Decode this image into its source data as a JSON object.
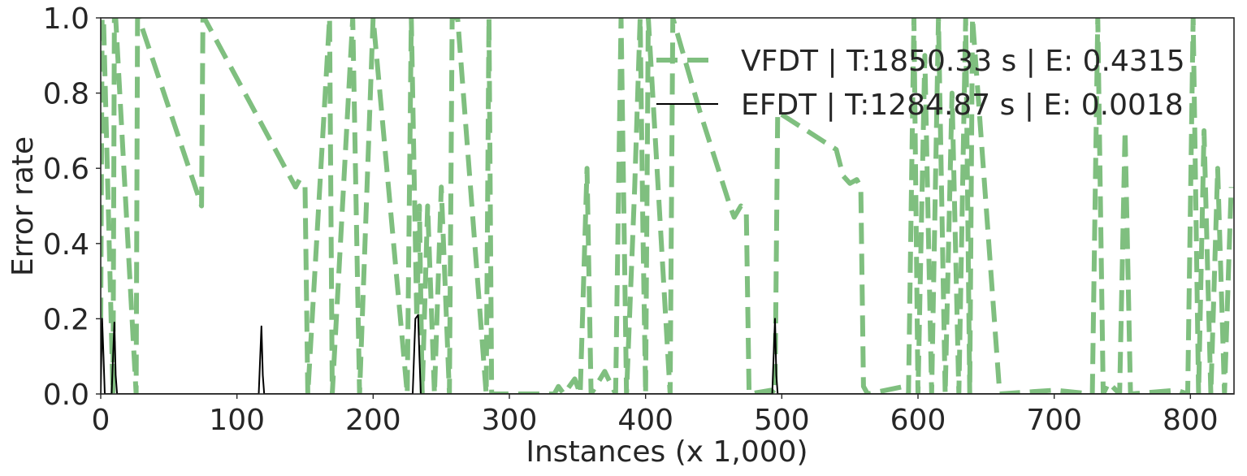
{
  "chart_data": {
    "type": "line",
    "xlabel": "Instances (x 1,000)",
    "ylabel": "Error rate",
    "xlim": [
      0,
      832
    ],
    "ylim": [
      0.0,
      1.0
    ],
    "x_ticks": [
      "0",
      "100",
      "200",
      "300",
      "400",
      "500",
      "600",
      "700",
      "800"
    ],
    "x_tick_values": [
      0,
      100,
      200,
      300,
      400,
      500,
      600,
      700,
      800
    ],
    "y_ticks": [
      "0.0",
      "0.2",
      "0.4",
      "0.6",
      "0.8",
      "1.0"
    ],
    "y_tick_values": [
      0.0,
      0.2,
      0.4,
      0.6,
      0.8,
      1.0
    ],
    "grid": false,
    "legend_position": "top-right",
    "series": [
      {
        "name": "VFDT | T:1850.33 s | E: 0.4315",
        "color": "#7fbf7f",
        "style": "dashed",
        "x": [
          0,
          1,
          2,
          9,
          10,
          11,
          26,
          27,
          28,
          74,
          75,
          76,
          143,
          146,
          150,
          152,
          168,
          170,
          185,
          190,
          200,
          225,
          228,
          232,
          234,
          236,
          240,
          245,
          250,
          256,
          258,
          262,
          283,
          285,
          287,
          333,
          336,
          340,
          348,
          352,
          357,
          360,
          370,
          378,
          382,
          386,
          392,
          396,
          398,
          400,
          402,
          418,
          420,
          440,
          462,
          465,
          470,
          474,
          476,
          492,
          495,
          497,
          540,
          545,
          550,
          555,
          558,
          560,
          563,
          590,
          593,
          597,
          600,
          605,
          610,
          615,
          620,
          625,
          630,
          635,
          638,
          640,
          660,
          700,
          728,
          732,
          736,
          740,
          748,
          752,
          756,
          790,
          798,
          802,
          806,
          810,
          815,
          820,
          825,
          830
        ],
        "y": [
          0.2,
          1.0,
          1.0,
          0.0,
          1.0,
          1.0,
          0.0,
          1.0,
          1.0,
          0.5,
          1.0,
          1.0,
          0.55,
          0.57,
          0.55,
          0.0,
          1.0,
          0.0,
          1.0,
          0.0,
          1.0,
          0.0,
          1.0,
          0.2,
          0.5,
          0.0,
          0.5,
          0.0,
          0.55,
          0.0,
          1.0,
          1.0,
          0.0,
          1.0,
          0.0,
          0.0,
          0.02,
          0.0,
          0.04,
          0.0,
          0.6,
          0.0,
          0.06,
          0.0,
          1.0,
          0.0,
          0.55,
          1.0,
          0.45,
          0.0,
          1.0,
          0.0,
          1.0,
          0.75,
          0.5,
          0.47,
          0.5,
          0.48,
          0.0,
          0.01,
          0.0,
          0.75,
          0.65,
          0.58,
          0.56,
          0.57,
          0.55,
          0.02,
          0.0,
          0.02,
          0.0,
          1.0,
          0.0,
          0.9,
          0.0,
          1.0,
          0.0,
          0.8,
          0.0,
          1.0,
          0.0,
          1.0,
          0.0,
          0.01,
          0.0,
          1.0,
          0.0,
          0.03,
          0.0,
          0.7,
          0.0,
          0.01,
          0.0,
          1.0,
          0.0,
          0.7,
          0.0,
          0.6,
          0.0,
          0.55
        ],
        "opacity": [
          1,
          1,
          1,
          1,
          1,
          1,
          1,
          1,
          1,
          1,
          1,
          1,
          1,
          1,
          1,
          1,
          1,
          1,
          1,
          1,
          1,
          1,
          1,
          1,
          1,
          1,
          1,
          1,
          1,
          1,
          1,
          1,
          1,
          1,
          1,
          1,
          1,
          1,
          1,
          1,
          1,
          1,
          1,
          1,
          1,
          1,
          1,
          1,
          1,
          1,
          1,
          1,
          1,
          1,
          1,
          1,
          1,
          1,
          1,
          1,
          1,
          1,
          1,
          1,
          1,
          1,
          1,
          1,
          1,
          1,
          1,
          1,
          1,
          1,
          1,
          1,
          1,
          1,
          1,
          1,
          1,
          1,
          1,
          1,
          1,
          1,
          1,
          1,
          1,
          1,
          1,
          1,
          1,
          1,
          1,
          1,
          1,
          1,
          1,
          1
        ]
      },
      {
        "name": "EFDT | T:1284.87 s | E: 0.0018",
        "color": "#000000",
        "style": "solid",
        "x": [
          0,
          1,
          2,
          3,
          8,
          10,
          11,
          12,
          116,
          118,
          119,
          120,
          229,
          231,
          233,
          234,
          235,
          493,
          495,
          496,
          497,
          832
        ],
        "y": [
          0.0,
          0.2,
          0.1,
          0.0,
          0.0,
          0.19,
          0.05,
          0.0,
          0.0,
          0.18,
          0.05,
          0.0,
          0.0,
          0.2,
          0.21,
          0.1,
          0.0,
          0.0,
          0.2,
          0.05,
          0.0,
          0.0
        ]
      }
    ]
  }
}
